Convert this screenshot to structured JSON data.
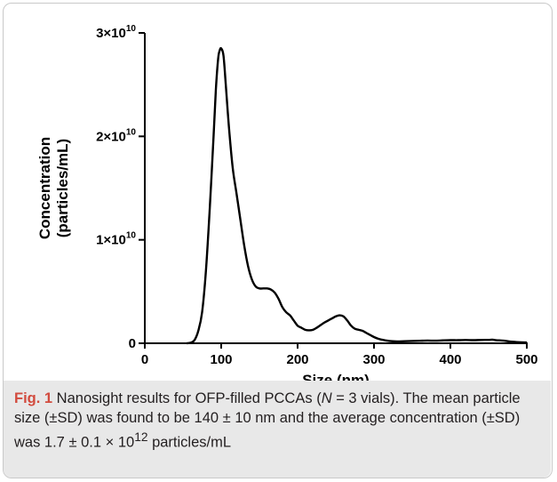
{
  "chart_data": {
    "type": "line",
    "xlabel": "Size (nm)",
    "ylabel_lines": [
      "Concentration",
      "(particles/mL)"
    ],
    "xlim": [
      0,
      500
    ],
    "ylim": [
      0,
      30000000000
    ],
    "x_ticks": [
      0,
      100,
      200,
      300,
      400,
      500
    ],
    "y_ticks": [
      {
        "value": 0,
        "mantissa": "0",
        "exponent": ""
      },
      {
        "value": 10000000000,
        "mantissa": "1×10",
        "exponent": "10"
      },
      {
        "value": 20000000000,
        "mantissa": "2×10",
        "exponent": "10"
      },
      {
        "value": 30000000000,
        "mantissa": "3×10",
        "exponent": "10"
      }
    ],
    "grid": false,
    "series": [
      {
        "color": "#000000",
        "x": [
          55,
          60,
          65,
          70,
          75,
          80,
          85,
          90,
          93,
          96,
          98,
          100,
          103,
          106,
          110,
          115,
          120,
          125,
          130,
          135,
          140,
          145,
          150,
          155,
          160,
          165,
          170,
          175,
          180,
          185,
          190,
          195,
          200,
          205,
          210,
          215,
          220,
          225,
          230,
          235,
          240,
          245,
          250,
          255,
          260,
          265,
          270,
          275,
          280,
          285,
          290,
          295,
          300,
          305,
          310,
          320,
          330,
          340,
          350,
          360,
          370,
          380,
          390,
          400,
          410,
          420,
          430,
          440,
          450,
          455,
          460,
          470,
          480,
          490,
          500
        ],
        "y": [
          0,
          50000000.0,
          300000000.0,
          1200000000.0,
          3000000000.0,
          7000000000.0,
          13000000000.0,
          20000000000.0,
          24500000000.0,
          27500000000.0,
          28300000000.0,
          28500000000.0,
          27800000000.0,
          25000000000.0,
          21000000000.0,
          17000000000.0,
          14500000000.0,
          12000000000.0,
          9500000000.0,
          7500000000.0,
          6200000000.0,
          5500000000.0,
          5300000000.0,
          5300000000.0,
          5300000000.0,
          5200000000.0,
          4900000000.0,
          4300000000.0,
          3500000000.0,
          3000000000.0,
          2700000000.0,
          2200000000.0,
          1700000000.0,
          1500000000.0,
          1300000000.0,
          1250000000.0,
          1300000000.0,
          1500000000.0,
          1750000000.0,
          2000000000.0,
          2200000000.0,
          2400000000.0,
          2600000000.0,
          2700000000.0,
          2600000000.0,
          2200000000.0,
          1700000000.0,
          1400000000.0,
          1300000000.0,
          1200000000.0,
          1000000000.0,
          800000000.0,
          600000000.0,
          450000000.0,
          350000000.0,
          220000000.0,
          180000000.0,
          200000000.0,
          220000000.0,
          240000000.0,
          260000000.0,
          250000000.0,
          280000000.0,
          300000000.0,
          300000000.0,
          320000000.0,
          300000000.0,
          320000000.0,
          330000000.0,
          350000000.0,
          300000000.0,
          250000000.0,
          150000000.0,
          100000000.0,
          80000000.0
        ]
      }
    ]
  },
  "caption": {
    "fig_label": "Fig. 1",
    "part1": " Nanosight results for OFP-filled PCCAs (",
    "n_symbol": "N",
    "part2": " = 3 vials). The mean particle size (±SD) was found to be 140 ± 10 nm and the average concentration (±SD) was 1.7 ± 0.1 × 10",
    "exponent": "12",
    "part3": " particles/mL"
  }
}
